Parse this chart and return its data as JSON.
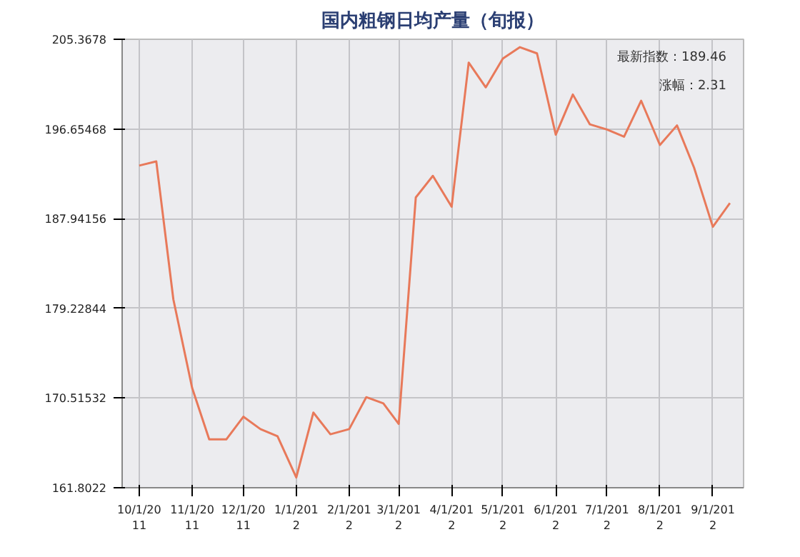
{
  "chart_data": {
    "type": "line",
    "title": "国内粗钢日均产量（旬报）",
    "x": [
      "2011-10-01",
      "2011-10-11",
      "2011-10-21",
      "2011-11-01",
      "2011-11-11",
      "2011-11-21",
      "2011-12-01",
      "2011-12-11",
      "2011-12-21",
      "2012-01-01",
      "2012-01-11",
      "2012-01-21",
      "2012-02-01",
      "2012-02-11",
      "2012-02-21",
      "2012-03-01",
      "2012-03-11",
      "2012-03-21",
      "2012-04-01",
      "2012-04-11",
      "2012-04-21",
      "2012-05-01",
      "2012-05-11",
      "2012-05-21",
      "2012-06-01",
      "2012-06-11",
      "2012-06-21",
      "2012-07-01",
      "2012-07-11",
      "2012-07-21",
      "2012-08-01",
      "2012-08-11",
      "2012-08-21",
      "2012-09-01",
      "2012-09-11"
    ],
    "series": [
      {
        "color": "#e8795a",
        "values": [
          193.1,
          193.5,
          180.1,
          171.5,
          166.5,
          166.5,
          168.7,
          167.5,
          166.8,
          162.8,
          169.1,
          167.0,
          167.5,
          170.6,
          170.0,
          168.0,
          190.0,
          192.1,
          189.1,
          203.1,
          200.7,
          203.5,
          204.6,
          204.0,
          196.1,
          200.0,
          197.1,
          196.6,
          195.9,
          199.4,
          195.1,
          197.0,
          192.9,
          187.15,
          189.46
        ]
      }
    ],
    "xlim": [
      "2011-09-21",
      "2012-09-19"
    ],
    "xticks": [
      {
        "value": "2011-10-01",
        "label": "10/1/20\n11"
      },
      {
        "value": "2011-11-01",
        "label": "11/1/20\n11"
      },
      {
        "value": "2011-12-01",
        "label": "12/1/20\n11"
      },
      {
        "value": "2012-01-01",
        "label": "1/1/201\n2"
      },
      {
        "value": "2012-02-01",
        "label": "2/1/201\n2"
      },
      {
        "value": "2012-03-01",
        "label": "3/1/201\n2"
      },
      {
        "value": "2012-04-01",
        "label": "4/1/201\n2"
      },
      {
        "value": "2012-05-01",
        "label": "5/1/201\n2"
      },
      {
        "value": "2012-06-01",
        "label": "6/1/201\n2"
      },
      {
        "value": "2012-07-01",
        "label": "7/1/201\n2"
      },
      {
        "value": "2012-08-01",
        "label": "8/1/201\n2"
      },
      {
        "value": "2012-09-01",
        "label": "9/1/201\n2"
      }
    ],
    "ylim": [
      161.8022,
      205.3678
    ],
    "yticks": [
      161.8022,
      170.51532,
      179.22844,
      187.94156,
      196.65468,
      205.3678
    ],
    "grid": true,
    "line_style": "solid",
    "annotations": [
      "最新指数：189.46",
      "涨幅：2.31"
    ]
  }
}
